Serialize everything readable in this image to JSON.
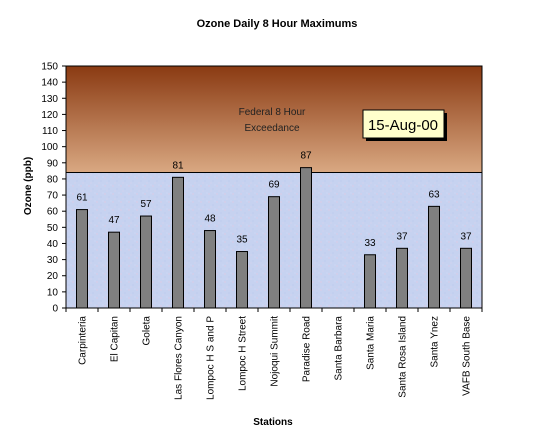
{
  "chart_data": {
    "type": "bar",
    "title": "Ozone Daily 8 Hour Maximums",
    "xlabel": "Stations",
    "ylabel": "Ozone (ppb)",
    "ylim": [
      0,
      150
    ],
    "ytick_step": 10,
    "threshold": 84,
    "threshold_label_line1": "Federal 8 Hour",
    "threshold_label_line2": "Exceedance",
    "date_label": "15-Aug-00",
    "categories": [
      "Carpinteria",
      "El Capitan",
      "Goleta",
      "Las Flores Canyon",
      "Lompoc H S and P",
      "Lompoc H Street",
      "Nojoqui Summit",
      "Paradise Road",
      "Santa Barbara",
      "Santa Maria",
      "Santa Rosa Island",
      "Santa Ynez",
      "VAFB South Base"
    ],
    "values": [
      61,
      47,
      57,
      81,
      48,
      35,
      69,
      87,
      null,
      33,
      37,
      63,
      37
    ],
    "bar_color": "#808080",
    "exceedance_color_top": "#8a3a12",
    "exceedance_color_bottom": "#d9a882",
    "below_color": "#c8d4f2"
  }
}
